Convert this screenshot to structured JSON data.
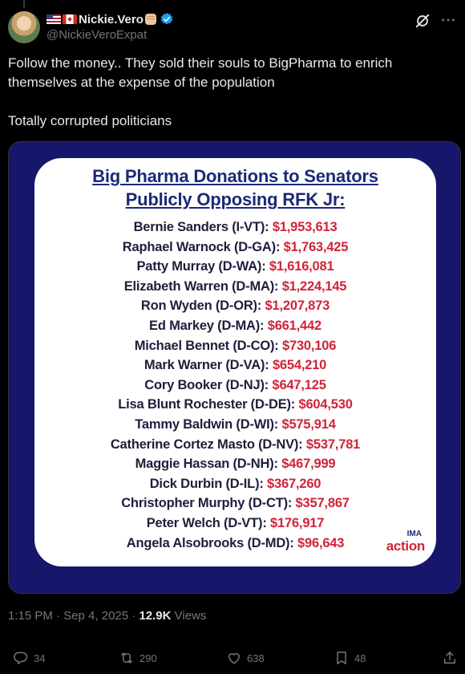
{
  "tweet": {
    "display_name": "Nickie.Vero",
    "handle": "@NickieVeroExpat",
    "text_line1": "Follow the money.. They sold their souls to BigPharma to enrich themselves at the expense of the population",
    "text_line2": "Totally corrupted politicians",
    "timestamp": "1:15 PM · Sep 4, 2025 · ",
    "views_count": "12.9K",
    "views_label": " Views"
  },
  "icons": {
    "flag_1": "us-flag-icon",
    "flag_2": "canada-flag-icon",
    "emoji": "raised-fist-icon",
    "verified": "verified-badge-icon",
    "grok": "grok-icon",
    "more": "more-icon"
  },
  "image": {
    "title_line1": "Big Pharma Donations to Senators",
    "title_line2": "Publicly Opposing RFK Jr:",
    "rows": [
      {
        "name": "Bernie Sanders (I-VT): ",
        "amount": "$1,953,613"
      },
      {
        "name": "Raphael Warnock (D-GA): ",
        "amount": "$1,763,425"
      },
      {
        "name": "Patty Murray (D-WA): ",
        "amount": "$1,616,081"
      },
      {
        "name": "Elizabeth Warren (D-MA): ",
        "amount": "$1,224,145"
      },
      {
        "name": "Ron Wyden (D-OR): ",
        "amount": "$1,207,873"
      },
      {
        "name": "Ed Markey (D-MA): ",
        "amount": "$661,442"
      },
      {
        "name": "Michael Bennet (D-CO): ",
        "amount": "$730,106"
      },
      {
        "name": "Mark Warner (D-VA): ",
        "amount": "$654,210"
      },
      {
        "name": "Cory Booker (D-NJ): ",
        "amount": "$647,125"
      },
      {
        "name": "Lisa Blunt Rochester (D-DE): ",
        "amount": "$604,530"
      },
      {
        "name": "Tammy Baldwin (D-WI): ",
        "amount": "$575,914"
      },
      {
        "name": "Catherine Cortez Masto (D-NV): ",
        "amount": "$537,781"
      },
      {
        "name": "Maggie Hassan (D-NH): ",
        "amount": "$467,999"
      },
      {
        "name": "Dick Durbin (D-IL): ",
        "amount": "$367,260"
      },
      {
        "name": "Christopher Murphy (D-CT): ",
        "amount": "$357,867"
      },
      {
        "name": "Peter Welch (D-VT): ",
        "amount": "$176,917"
      },
      {
        "name": "Angela Alsobrooks (D-MD): ",
        "amount": "$96,643"
      }
    ],
    "logo_top": "IMA",
    "logo_bottom": "action"
  },
  "actions": {
    "reply_count": "34",
    "repost_count": "290",
    "like_count": "638",
    "bookmark_count": "48"
  },
  "colors": {
    "background": "#000000",
    "text_primary": "#e7e9ea",
    "text_secondary": "#71767b",
    "verified": "#1d9bf0",
    "image_frame": "#16166b",
    "image_title": "#1c2a78",
    "image_amount": "#d0243a"
  }
}
